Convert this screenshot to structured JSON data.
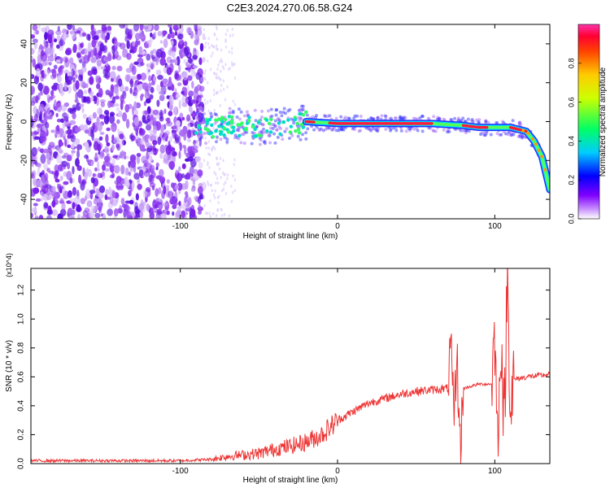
{
  "title": "C2E3.2024.270.06.58.G24",
  "colors": {
    "snr_line": "#ee3333",
    "axis": "#000000"
  },
  "chart_data": [
    {
      "type": "heatmap",
      "xlabel": "Height of straight line (km)",
      "ylabel": "Frequency (Hz)",
      "xlim": [
        -195,
        135
      ],
      "ylim": [
        -50,
        50
      ],
      "x_ticks": [
        -100,
        0,
        100
      ],
      "y_ticks": [
        -40,
        -20,
        0,
        20,
        40
      ],
      "grid": false,
      "colorbar": {
        "label": "Normalized spectral amplitude",
        "range": [
          0,
          1
        ],
        "ticks": [
          "0.0",
          "0.2",
          "0.4",
          "0.6",
          "0.8"
        ]
      },
      "ridge": {
        "x": [
          -90,
          -70,
          -50,
          -30,
          -20,
          0,
          20,
          40,
          60,
          80,
          90,
          100,
          110,
          120,
          125,
          130,
          135
        ],
        "y": [
          -4,
          -2,
          -3,
          -2,
          0,
          -1,
          -1,
          -1,
          -1,
          -2,
          -3,
          -3,
          -3,
          -5,
          -10,
          -18,
          -35
        ]
      },
      "noise_region_x": [
        -195,
        -85
      ]
    },
    {
      "type": "line",
      "xlabel": "Height of straight line (km)",
      "ylabel": "SNR (10 * v/v)",
      "y_multiplier": "(x10^4)",
      "xlim": [
        -195,
        135
      ],
      "ylim": [
        0,
        1.35
      ],
      "x_ticks": [
        -100,
        0,
        100
      ],
      "y_ticks": [
        0.0,
        0.2,
        0.4,
        0.6,
        0.8,
        1.0,
        1.2
      ],
      "grid": false,
      "series": [
        {
          "x": [
            -195,
            -150,
            -100,
            -80,
            -70,
            -50,
            -40,
            -30,
            -20,
            -10,
            0,
            10,
            20,
            30,
            40,
            50,
            60,
            70,
            72,
            74,
            76,
            78,
            80,
            90,
            98,
            100,
            102,
            104,
            106,
            108,
            110,
            112,
            120,
            130,
            135
          ],
          "y": [
            0.02,
            0.02,
            0.02,
            0.03,
            0.05,
            0.07,
            0.1,
            0.12,
            0.15,
            0.2,
            0.3,
            0.36,
            0.42,
            0.45,
            0.48,
            0.5,
            0.51,
            0.52,
            0.8,
            0.3,
            0.75,
            0.1,
            0.52,
            0.55,
            0.55,
            0.9,
            0.05,
            0.95,
            0.2,
            1.35,
            0.4,
            0.58,
            0.6,
            0.61,
            0.62
          ]
        }
      ]
    }
  ]
}
